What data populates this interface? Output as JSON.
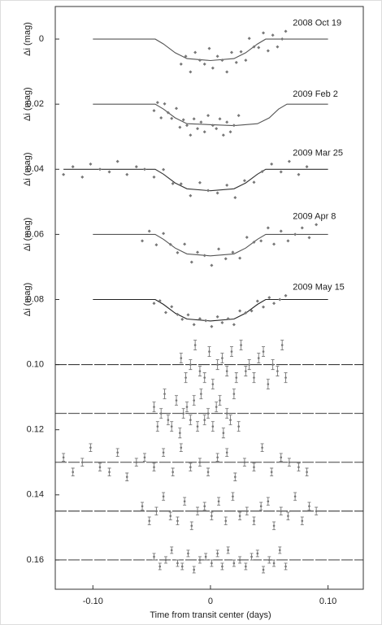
{
  "chart_data": {
    "type": "scatter",
    "xlabel": "Time from transit center (days)",
    "ylabel": "Δi (mag)",
    "xlim": [
      -0.132,
      0.13
    ],
    "ylim": [
      -0.01,
      0.169
    ],
    "y_inverted": true,
    "xticks": [
      {
        "value": -0.1,
        "label": "-0.10"
      },
      0,
      {
        "value": 0.1,
        "label": "0.10"
      }
    ],
    "yticks": [
      0,
      0.02,
      0.04,
      0.06,
      0.08,
      {
        "value": 0.1,
        "label": "0.10"
      },
      0.12,
      0.14,
      0.16
    ],
    "series": [
      {
        "name": "2008 Oct 19",
        "color": "#777777",
        "x": [
          -0.025,
          -0.021,
          -0.017,
          -0.013,
          -0.009,
          -0.005,
          -0.001,
          0.002,
          0.006,
          0.01,
          0.014,
          0.018,
          0.022,
          0.026,
          0.03,
          0.033,
          0.037,
          0.041,
          0.045,
          0.049,
          0.053,
          0.057,
          0.061,
          0.064
        ],
        "values": [
          0.0077,
          0.0053,
          0.0101,
          0.0041,
          0.0065,
          0.0077,
          0.0029,
          0.0089,
          0.0053,
          0.0065,
          0.0101,
          0.0041,
          0.0072,
          0.0039,
          0.0065,
          -0.0002,
          0.0024,
          0.0026,
          -0.0019,
          0.0036,
          -0.0012,
          0.0024,
          0,
          -0.0024
        ]
      },
      {
        "name": "2009 Feb 2",
        "color": "#777777",
        "x": [
          -0.048,
          -0.045,
          -0.042,
          -0.039,
          -0.036,
          -0.033,
          -0.029,
          -0.026,
          -0.023,
          -0.02,
          -0.017,
          -0.014,
          -0.011,
          -0.008,
          -0.005,
          -0.002,
          0.002,
          0.005,
          0.008,
          0.011,
          0.014,
          0.017,
          0.02,
          0.024
        ],
        "values": [
          0.022,
          0.0195,
          0.0242,
          0.0199,
          0.0226,
          0.0244,
          0.0213,
          0.0271,
          0.0248,
          0.0265,
          0.0295,
          0.0245,
          0.0275,
          0.0255,
          0.0285,
          0.0235,
          0.0265,
          0.0275,
          0.0245,
          0.0295,
          0.0255,
          0.0285,
          0.0265,
          0.0235
        ]
      },
      {
        "name": "2009 Mar 25",
        "color": "#777777",
        "x": [
          -0.125,
          -0.117,
          -0.109,
          -0.102,
          -0.094,
          -0.086,
          -0.079,
          -0.071,
          -0.063,
          -0.056,
          -0.048,
          -0.04,
          -0.032,
          -0.025,
          -0.017,
          -0.009,
          -0.002,
          0.006,
          0.014,
          0.021,
          0.029,
          0.037,
          0.044,
          0.052,
          0.06,
          0.067,
          0.075,
          0.082
        ],
        "values": [
          0.0416,
          0.0392,
          0.0424,
          0.0384,
          0.04,
          0.0408,
          0.0376,
          0.0416,
          0.0392,
          0.04,
          0.0424,
          0.0401,
          0.0444,
          0.0445,
          0.0481,
          0.0441,
          0.0465,
          0.0473,
          0.0449,
          0.0487,
          0.0435,
          0.044,
          0.0407,
          0.0384,
          0.0408,
          0.0376,
          0.0416,
          0.0392
        ]
      },
      {
        "name": "2009 Apr 8",
        "color": "#777777",
        "x": [
          -0.058,
          -0.052,
          -0.046,
          -0.04,
          -0.034,
          -0.028,
          -0.022,
          -0.016,
          -0.011,
          -0.005,
          0.001,
          0.007,
          0.013,
          0.019,
          0.025,
          0.031,
          0.037,
          0.043,
          0.049,
          0.054,
          0.06,
          0.066,
          0.072,
          0.078,
          0.084,
          0.09
        ],
        "values": [
          0.062,
          0.059,
          0.0632,
          0.0597,
          0.0631,
          0.0656,
          0.063,
          0.0685,
          0.0655,
          0.0665,
          0.0695,
          0.0645,
          0.0675,
          0.0655,
          0.0673,
          0.0609,
          0.0624,
          0.062,
          0.058,
          0.063,
          0.059,
          0.062,
          0.06,
          0.058,
          0.061,
          0.057
        ]
      },
      {
        "name": "2009 May 15",
        "color": "#777777",
        "x": [
          -0.048,
          -0.043,
          -0.038,
          -0.033,
          -0.028,
          -0.024,
          -0.019,
          -0.014,
          -0.009,
          -0.004,
          0.001,
          0.006,
          0.01,
          0.015,
          0.02,
          0.025,
          0.03,
          0.035,
          0.04,
          0.045,
          0.05,
          0.054,
          0.059,
          0.064
        ],
        "values": [
          0.0812,
          0.0804,
          0.084,
          0.0822,
          0.0846,
          0.0861,
          0.0847,
          0.0877,
          0.0859,
          0.0865,
          0.0883,
          0.0853,
          0.0871,
          0.0859,
          0.0877,
          0.0835,
          0.0841,
          0.0835,
          0.0805,
          0.0823,
          0.0794,
          0.0812,
          0.08,
          0.0788
        ]
      }
    ],
    "models": [
      {
        "color": "#555555",
        "x": [
          -0.1,
          -0.047,
          -0.04,
          -0.03,
          -0.02,
          0,
          0.02,
          0.03,
          0.04,
          0.047,
          0.1
        ],
        "values": [
          0,
          0,
          0.0015,
          0.0042,
          0.006,
          0.0066,
          0.006,
          0.0042,
          0.0015,
          0,
          0
        ]
      },
      {
        "color": "#555555",
        "x": [
          -0.1,
          -0.047,
          -0.04,
          -0.03,
          -0.02,
          0.02,
          0.04,
          0.05,
          0.058,
          0.065,
          0.1
        ],
        "values": [
          0.02,
          0.02,
          0.0215,
          0.0242,
          0.026,
          0.0266,
          0.026,
          0.0242,
          0.0215,
          0.02,
          0.02
        ]
      },
      {
        "color": "#333333",
        "x": [
          -0.125,
          -0.047,
          -0.04,
          -0.03,
          -0.02,
          0,
          0.02,
          0.03,
          0.04,
          0.047,
          0.1
        ],
        "values": [
          0.04,
          0.04,
          0.0415,
          0.0442,
          0.046,
          0.0466,
          0.046,
          0.0442,
          0.0415,
          0.04,
          0.04
        ]
      },
      {
        "color": "#555555",
        "x": [
          -0.1,
          -0.047,
          -0.04,
          -0.03,
          -0.02,
          0,
          0.02,
          0.03,
          0.04,
          0.047,
          0.1
        ],
        "values": [
          0.06,
          0.06,
          0.0615,
          0.0642,
          0.066,
          0.0666,
          0.066,
          0.0642,
          0.0615,
          0.06,
          0.06
        ]
      },
      {
        "color": "#222222",
        "x": [
          -0.1,
          -0.047,
          -0.04,
          -0.03,
          -0.02,
          0,
          0.02,
          0.03,
          0.04,
          0.047,
          0.1
        ],
        "values": [
          0.08,
          0.08,
          0.0815,
          0.0842,
          0.086,
          0.0866,
          0.086,
          0.0842,
          0.0815,
          0.08,
          0.08
        ]
      }
    ],
    "residuals": [
      {
        "color": "#777777",
        "error": 0.0015,
        "x": [
          -0.025,
          -0.021,
          -0.017,
          -0.013,
          -0.009,
          -0.005,
          -0.001,
          0.002,
          0.006,
          0.01,
          0.014,
          0.018,
          0.022,
          0.026,
          0.03,
          0.033,
          0.037,
          0.041,
          0.045,
          0.049,
          0.053,
          0.057,
          0.061,
          0.064
        ],
        "values": [
          0.098,
          0.104,
          0.1,
          0.094,
          0.102,
          0.104,
          0.096,
          0.106,
          0.1,
          0.098,
          0.102,
          0.096,
          0.104,
          0.094,
          0.102,
          0.1,
          0.104,
          0.098,
          0.096,
          0.106,
          0.1,
          0.102,
          0.094,
          0.104
        ]
      },
      {
        "color": "#777777",
        "error": 0.0015,
        "x": [
          -0.048,
          -0.045,
          -0.042,
          -0.039,
          -0.036,
          -0.033,
          -0.029,
          -0.026,
          -0.023,
          -0.02,
          -0.017,
          -0.014,
          -0.011,
          -0.008,
          -0.005,
          -0.002,
          0.002,
          0.005,
          0.008,
          0.011,
          0.014,
          0.017,
          0.02,
          0.024
        ],
        "values": [
          0.113,
          0.119,
          0.115,
          0.109,
          0.117,
          0.119,
          0.111,
          0.121,
          0.115,
          0.113,
          0.117,
          0.111,
          0.119,
          0.109,
          0.117,
          0.115,
          0.119,
          0.113,
          0.111,
          0.121,
          0.115,
          0.117,
          0.109,
          0.119
        ]
      },
      {
        "color": "#777777",
        "error": 0.0012,
        "x": [
          -0.125,
          -0.117,
          -0.109,
          -0.102,
          -0.094,
          -0.086,
          -0.079,
          -0.071,
          -0.063,
          -0.056,
          -0.048,
          -0.04,
          -0.032,
          -0.025,
          -0.017,
          -0.009,
          -0.002,
          0.006,
          0.014,
          0.021,
          0.029,
          0.037,
          0.044,
          0.052,
          0.06,
          0.067,
          0.075,
          0.082
        ],
        "values": [
          0.1285,
          0.133,
          0.13,
          0.1255,
          0.1315,
          0.133,
          0.127,
          0.1345,
          0.13,
          0.1285,
          0.1315,
          0.127,
          0.133,
          0.1255,
          0.1315,
          0.13,
          0.133,
          0.1285,
          0.127,
          0.1345,
          0.13,
          0.1315,
          0.1255,
          0.133,
          0.1285,
          0.13,
          0.1315,
          0.133
        ]
      },
      {
        "color": "#777777",
        "error": 0.0012,
        "x": [
          -0.058,
          -0.052,
          -0.046,
          -0.04,
          -0.034,
          -0.028,
          -0.022,
          -0.016,
          -0.011,
          -0.005,
          0.001,
          0.007,
          0.013,
          0.019,
          0.025,
          0.031,
          0.037,
          0.043,
          0.049,
          0.054,
          0.06,
          0.066,
          0.072,
          0.078,
          0.084,
          0.09
        ],
        "values": [
          0.1435,
          0.148,
          0.145,
          0.1405,
          0.1465,
          0.148,
          0.142,
          0.1495,
          0.145,
          0.1435,
          0.1465,
          0.142,
          0.148,
          0.1405,
          0.1465,
          0.145,
          0.148,
          0.1435,
          0.142,
          0.1495,
          0.145,
          0.1465,
          0.1405,
          0.148,
          0.1435,
          0.145
        ]
      },
      {
        "color": "#777777",
        "error": 0.001,
        "x": [
          -0.048,
          -0.043,
          -0.038,
          -0.033,
          -0.028,
          -0.024,
          -0.019,
          -0.014,
          -0.009,
          -0.004,
          0.001,
          0.006,
          0.01,
          0.015,
          0.02,
          0.025,
          0.03,
          0.035,
          0.04,
          0.045,
          0.05,
          0.054,
          0.059,
          0.064
        ],
        "values": [
          0.159,
          0.162,
          0.16,
          0.157,
          0.161,
          0.162,
          0.158,
          0.163,
          0.16,
          0.159,
          0.161,
          0.158,
          0.162,
          0.157,
          0.161,
          0.16,
          0.162,
          0.159,
          0.158,
          0.163,
          0.16,
          0.161,
          0.157,
          0.162
        ]
      }
    ],
    "reference_lines": [
      0.1,
      0.115,
      0.13,
      0.145,
      0.16
    ]
  }
}
